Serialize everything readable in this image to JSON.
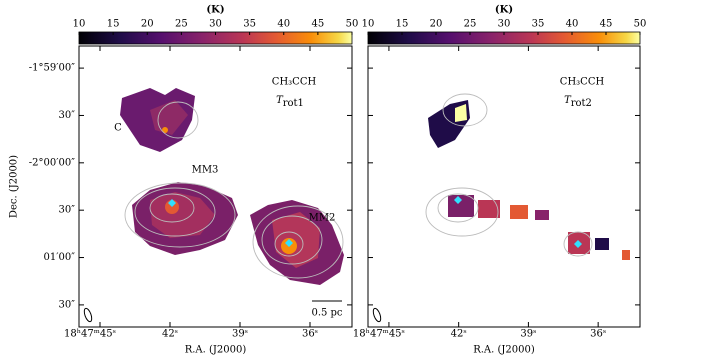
{
  "chart_data": [
    {
      "type": "image",
      "colorbar": {
        "label": "(K)",
        "clim": [
          10,
          50
        ],
        "ticks": [
          10,
          15,
          20,
          25,
          30,
          35,
          40,
          45,
          50
        ]
      },
      "molecule": "CH₃CCH",
      "quantity": {
        "symbol": "T",
        "subscript": "rot1"
      },
      "annotations": [
        "C",
        "MM3",
        "MM2"
      ],
      "scale_bar": "0.5 pc",
      "xlabel": "R.A. (J2000)",
      "ylabel": "Dec. (J2000)",
      "xlim": [
        45.9,
        34.2
      ],
      "xticks": [
        {
          "value": 45,
          "label": "18ʰ47ᵐ45ˢ"
        },
        {
          "value": 42,
          "label": "42ˢ"
        },
        {
          "value": 39,
          "label": "39ˢ"
        },
        {
          "value": 36,
          "label": "36ˢ"
        }
      ],
      "ylim": [
        -7304,
        -7126
      ],
      "yticks": [
        {
          "value": -7140,
          "label": "-1°59′00″"
        },
        {
          "value": -7170,
          "label": "30″"
        },
        {
          "value": -7200,
          "label": "-2°00′00″"
        },
        {
          "value": -7230,
          "label": "30″"
        },
        {
          "value": -7260,
          "label": "01′00″"
        },
        {
          "value": -7290,
          "label": "30″"
        }
      ]
    },
    {
      "type": "image",
      "colorbar": {
        "label": "(K)",
        "clim": [
          10,
          50
        ],
        "ticks": [
          10,
          15,
          20,
          25,
          30,
          35,
          40,
          45,
          50
        ]
      },
      "molecule": "CH₃CCH",
      "quantity": {
        "symbol": "T",
        "subscript": "rot2"
      },
      "xlabel": "R.A. (J2000)",
      "xlim": [
        45.9,
        34.2
      ],
      "xticks": [
        {
          "value": 45,
          "label": "18ʰ47ᵐ45ˢ"
        },
        {
          "value": 42,
          "label": "42ˢ"
        },
        {
          "value": 39,
          "label": "39ˢ"
        },
        {
          "value": 36,
          "label": "36ˢ"
        }
      ]
    }
  ]
}
